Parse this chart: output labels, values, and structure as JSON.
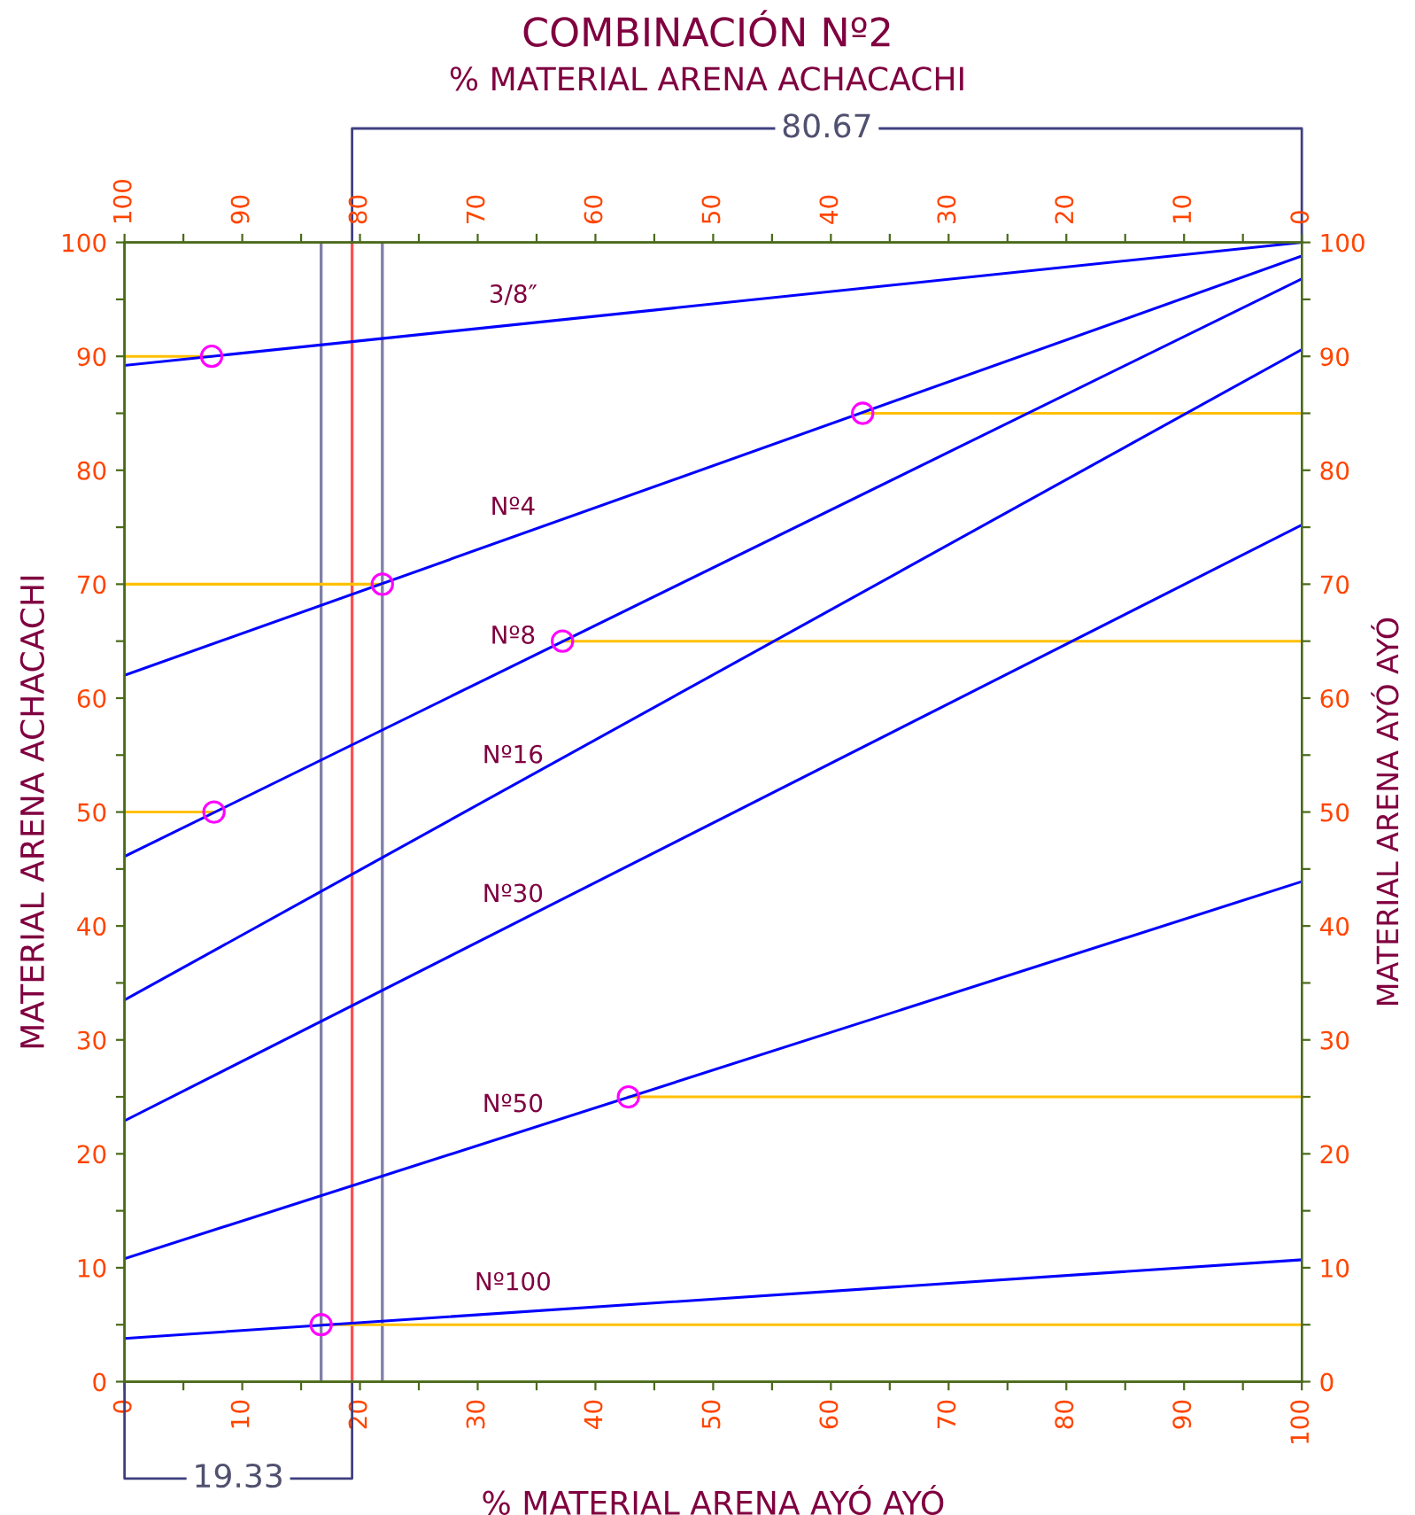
{
  "chart_data": {
    "type": "line",
    "title": "COMBINACIÓN Nº2",
    "x2label": "% MATERIAL ARENA ACHACACHI",
    "xlabel": "% MATERIAL ARENA AYÓ AYÓ",
    "ylabel": "MATERIAL ARENA ACHACACHI",
    "y2label": "MATERIAL ARENA AYÓ AYÓ",
    "annotations": [
      "19.33",
      "80.67"
    ],
    "xlim": [
      0,
      100
    ],
    "ylim": [
      0,
      100
    ],
    "x2lim": [
      100,
      0
    ],
    "y2lim": [
      0,
      100
    ],
    "xticks": [
      0,
      {
        "value": 5,
        "label": null
      },
      10,
      {
        "value": 15,
        "label": null
      },
      20,
      {
        "value": 25,
        "label": null
      },
      30,
      {
        "value": 35,
        "label": null
      },
      40,
      {
        "value": 45,
        "label": null
      },
      50,
      {
        "value": 55,
        "label": null
      },
      60,
      {
        "value": 65,
        "label": null
      },
      70,
      {
        "value": 75,
        "label": null
      },
      80,
      {
        "value": 85,
        "label": null
      },
      90,
      {
        "value": 95,
        "label": null
      },
      100
    ],
    "x2ticks": [
      100,
      {
        "value": 95,
        "label": null
      },
      90,
      {
        "value": 85,
        "label": null
      },
      80,
      {
        "value": 75,
        "label": null
      },
      70,
      {
        "value": 65,
        "label": null
      },
      60,
      {
        "value": 55,
        "label": null
      },
      50,
      {
        "value": 45,
        "label": null
      },
      40,
      {
        "value": 35,
        "label": null
      },
      30,
      {
        "value": 25,
        "label": null
      },
      20,
      {
        "value": 15,
        "label": null
      },
      10,
      {
        "value": 5,
        "label": null
      },
      0
    ],
    "yticks": [
      0,
      {
        "value": 5,
        "label": null
      },
      10,
      {
        "value": 15,
        "label": null
      },
      20,
      {
        "value": 25,
        "label": null
      },
      30,
      {
        "value": 35,
        "label": null
      },
      40,
      {
        "value": 45,
        "label": null
      },
      50,
      {
        "value": 55,
        "label": null
      },
      60,
      {
        "value": 65,
        "label": null
      },
      70,
      {
        "value": 75,
        "label": null
      },
      80,
      {
        "value": 85,
        "label": null
      },
      90,
      {
        "value": 95,
        "label": null
      },
      100
    ],
    "y2ticks": [
      0,
      {
        "value": 5,
        "label": null
      },
      10,
      {
        "value": 15,
        "label": null
      },
      20,
      {
        "value": 25,
        "label": null
      },
      30,
      {
        "value": 35,
        "label": null
      },
      40,
      {
        "value": 45,
        "label": null
      },
      50,
      {
        "value": 55,
        "label": null
      },
      60,
      {
        "value": 65,
        "label": null
      },
      70,
      {
        "value": 75,
        "label": null
      },
      80,
      {
        "value": 85,
        "label": null
      },
      90,
      {
        "value": 95,
        "label": null
      },
      100
    ],
    "grid": false,
    "legend": false,
    "ref_lines": [
      {
        "axis": "x",
        "value": 16.7,
        "color": "#8080a8"
      },
      {
        "axis": "x",
        "value": 19.33,
        "color": "#ff5050"
      },
      {
        "axis": "x",
        "value": 21.9,
        "color": "#8080a8"
      }
    ],
    "series": [
      {
        "name": "3/8″",
        "color": "#0000ff",
        "x": [
          0,
          100
        ],
        "values": [
          89.2,
          100
        ]
      },
      {
        "name": "Nº4",
        "color": "#0000ff",
        "x": [
          0,
          100
        ],
        "values": [
          62.0,
          98.8
        ]
      },
      {
        "name": "Nº8",
        "color": "#0000ff",
        "x": [
          0,
          100
        ],
        "values": [
          46.1,
          96.8
        ]
      },
      {
        "name": "Nº16",
        "color": "#0000ff",
        "x": [
          0,
          100
        ],
        "values": [
          33.5,
          90.6
        ]
      },
      {
        "name": "Nº30",
        "color": "#0000ff",
        "x": [
          0,
          100
        ],
        "values": [
          22.9,
          75.2
        ]
      },
      {
        "name": "Nº50",
        "color": "#0000ff",
        "x": [
          0,
          100
        ],
        "values": [
          10.8,
          43.9
        ]
      },
      {
        "name": "Nº100",
        "color": "#0000ff",
        "x": [
          0,
          100
        ],
        "values": [
          3.8,
          10.7
        ]
      },
      {
        "color": "#ffc000",
        "x": [
          0,
          7.4
        ],
        "values": [
          90,
          90
        ]
      },
      {
        "color": "#ffc000",
        "x": [
          0,
          21.9
        ],
        "values": [
          70,
          70
        ]
      },
      {
        "color": "#ffc000",
        "x": [
          0,
          7.6
        ],
        "values": [
          50,
          50
        ]
      },
      {
        "color": "#ffc000",
        "x": [
          62.7,
          100
        ],
        "values": [
          85,
          85
        ]
      },
      {
        "color": "#ffc000",
        "x": [
          37.2,
          100
        ],
        "values": [
          65,
          65
        ]
      },
      {
        "color": "#ffc000",
        "x": [
          42.8,
          100
        ],
        "values": [
          25,
          25
        ]
      },
      {
        "color": "#ffc000",
        "x": [
          16.7,
          100
        ],
        "values": [
          5,
          5
        ]
      },
      {
        "type": "scatter",
        "marker": "circle",
        "color": "#ff00ff",
        "x": [
          7.4,
          21.9,
          62.7,
          37.2,
          7.6,
          42.8,
          16.7
        ],
        "values": [
          90,
          70,
          85,
          65,
          50,
          25,
          5
        ]
      }
    ]
  }
}
